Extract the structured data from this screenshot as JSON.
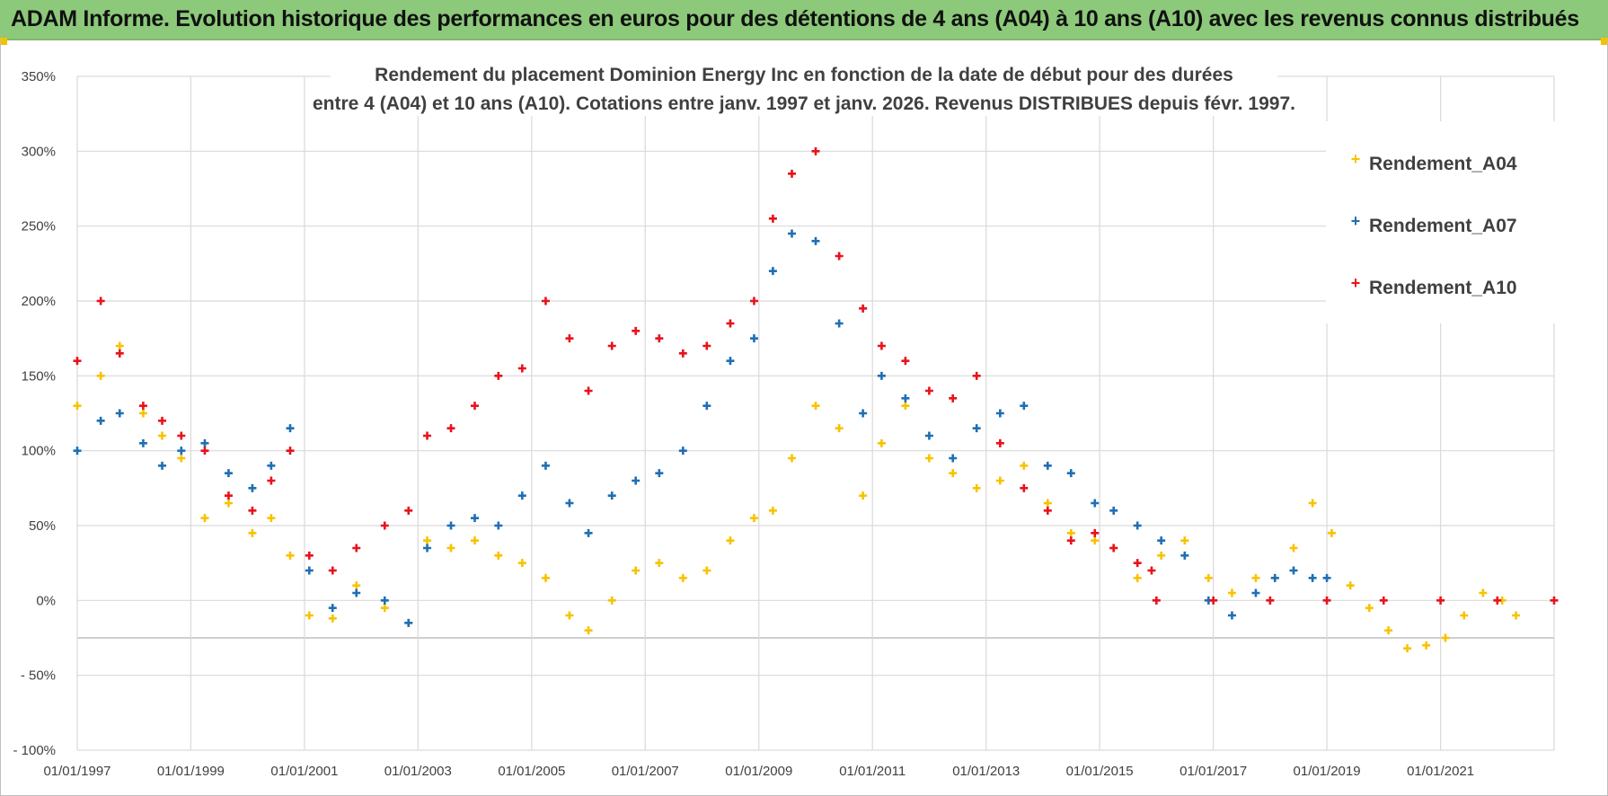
{
  "banner": {
    "text": "ADAM Informe. Evolution historique des performances en euros pour des détentions de 4 ans (A04) à 10 ans (A10) avec les revenus connus distribués"
  },
  "colors": {
    "banner_bg": "#8cc97a",
    "A04": "#f7c300",
    "A07": "#1f6fb4",
    "A10": "#e8121c",
    "grid": "#d9d9d9"
  },
  "chart_data": {
    "type": "scatter",
    "title_lines": [
      "Rendement du placement Dominion Energy Inc en fonction de la date de début pour des durées",
      "entre 4 (A04) et 10 ans (A10). Cotations entre janv. 1997 et janv. 2026. Revenus DISTRIBUES depuis févr. 1997."
    ],
    "x_axis": {
      "type": "date",
      "range": [
        "1997-01-01",
        "2023-01-01"
      ],
      "tick_labels": [
        "01/01/1997",
        "01/01/1999",
        "01/01/2001",
        "01/01/2003",
        "01/01/2005",
        "01/01/2007",
        "01/01/2009",
        "01/01/2011",
        "01/01/2013",
        "01/01/2015",
        "01/01/2017",
        "01/01/2019",
        "01/01/2021"
      ]
    },
    "y_axis": {
      "range": [
        -100,
        350
      ],
      "unit": "%",
      "tick_values": [
        -100,
        -50,
        0,
        50,
        100,
        150,
        200,
        250,
        300,
        350
      ],
      "tick_labels": [
        "- 100%",
        "- 50%",
        "0%",
        "50%",
        "100%",
        "150%",
        "200%",
        "250%",
        "300%",
        "350%"
      ]
    },
    "grid": true,
    "legend_position": "top-right",
    "marker": "+",
    "series": [
      {
        "name": "Rendement_A04",
        "color": "#f7c300",
        "x": [
          "1997-01-01",
          "1997-06-01",
          "1997-10-01",
          "1998-03-01",
          "1998-07-01",
          "1998-11-01",
          "1999-04-01",
          "1999-09-01",
          "2000-02-01",
          "2000-06-01",
          "2000-10-01",
          "2001-02-01",
          "2001-07-01",
          "2001-12-01",
          "2002-06-01",
          "2002-11-01",
          "2003-03-01",
          "2003-08-01",
          "2004-01-01",
          "2004-06-01",
          "2004-11-01",
          "2005-04-01",
          "2005-09-01",
          "2006-01-01",
          "2006-06-01",
          "2006-11-01",
          "2007-04-01",
          "2007-09-01",
          "2008-02-01",
          "2008-07-01",
          "2008-12-01",
          "2009-04-01",
          "2009-08-01",
          "2010-01-01",
          "2010-06-01",
          "2010-11-01",
          "2011-03-01",
          "2011-08-01",
          "2012-01-01",
          "2012-06-01",
          "2012-11-01",
          "2013-04-01",
          "2013-09-01",
          "2014-02-01",
          "2014-07-01",
          "2014-12-01",
          "2015-04-01",
          "2015-09-01",
          "2016-02-01",
          "2016-07-01",
          "2016-12-01",
          "2017-05-01",
          "2017-10-01",
          "2018-02-01",
          "2018-06-01",
          "2018-10-01",
          "2019-02-01",
          "2019-06-01",
          "2019-10-01",
          "2020-02-01",
          "2020-06-01",
          "2020-10-01",
          "2021-02-01",
          "2021-06-01",
          "2021-10-01",
          "2022-02-01",
          "2022-05-01"
        ],
        "y": [
          130,
          150,
          170,
          125,
          110,
          95,
          55,
          65,
          45,
          55,
          30,
          -10,
          -12,
          10,
          -5,
          -15,
          40,
          35,
          40,
          30,
          25,
          15,
          -10,
          -20,
          0,
          20,
          25,
          15,
          20,
          40,
          55,
          60,
          95,
          130,
          115,
          70,
          105,
          130,
          95,
          85,
          75,
          80,
          90,
          65,
          45,
          40,
          35,
          15,
          30,
          40,
          15,
          5,
          15,
          15,
          35,
          65,
          45,
          10,
          -5,
          -20,
          -32,
          -30,
          -25,
          -10,
          5,
          0,
          -10
        ]
      },
      {
        "name": "Rendement_A07",
        "color": "#1f6fb4",
        "x": [
          "1997-01-01",
          "1997-06-01",
          "1997-10-01",
          "1998-03-01",
          "1998-07-01",
          "1998-11-01",
          "1999-04-01",
          "1999-09-01",
          "2000-02-01",
          "2000-06-01",
          "2000-10-01",
          "2001-02-01",
          "2001-07-01",
          "2001-12-01",
          "2002-06-01",
          "2002-11-01",
          "2003-03-01",
          "2003-08-01",
          "2004-01-01",
          "2004-06-01",
          "2004-11-01",
          "2005-04-01",
          "2005-09-01",
          "2006-01-01",
          "2006-06-01",
          "2006-11-01",
          "2007-04-01",
          "2007-09-01",
          "2008-02-01",
          "2008-07-01",
          "2008-12-01",
          "2009-04-01",
          "2009-08-01",
          "2010-01-01",
          "2010-06-01",
          "2010-11-01",
          "2011-03-01",
          "2011-08-01",
          "2012-01-01",
          "2012-06-01",
          "2012-11-01",
          "2013-04-01",
          "2013-09-01",
          "2014-02-01",
          "2014-07-01",
          "2014-12-01",
          "2015-04-01",
          "2015-09-01",
          "2016-02-01",
          "2016-07-01",
          "2016-12-01",
          "2017-05-01",
          "2017-10-01",
          "2018-02-01",
          "2018-06-01",
          "2018-10-01",
          "2019-01-01"
        ],
        "y": [
          100,
          120,
          125,
          105,
          90,
          100,
          105,
          85,
          75,
          90,
          115,
          20,
          -5,
          5,
          0,
          -15,
          35,
          50,
          55,
          50,
          70,
          90,
          65,
          45,
          70,
          80,
          85,
          100,
          130,
          160,
          175,
          220,
          245,
          240,
          185,
          125,
          150,
          135,
          110,
          95,
          115,
          125,
          130,
          90,
          85,
          65,
          60,
          50,
          40,
          30,
          0,
          -10,
          5,
          15,
          20,
          15,
          15
        ]
      },
      {
        "name": "Rendement_A10",
        "color": "#e8121c",
        "x": [
          "1997-01-01",
          "1997-06-01",
          "1997-10-01",
          "1998-03-01",
          "1998-07-01",
          "1998-11-01",
          "1999-04-01",
          "1999-09-01",
          "2000-02-01",
          "2000-06-01",
          "2000-10-01",
          "2001-02-01",
          "2001-07-01",
          "2001-12-01",
          "2002-06-01",
          "2002-11-01",
          "2003-03-01",
          "2003-08-01",
          "2004-01-01",
          "2004-06-01",
          "2004-11-01",
          "2005-04-01",
          "2005-09-01",
          "2006-01-01",
          "2006-06-01",
          "2006-11-01",
          "2007-04-01",
          "2007-09-01",
          "2008-02-01",
          "2008-07-01",
          "2008-12-01",
          "2009-04-01",
          "2009-08-01",
          "2010-01-01",
          "2010-06-01",
          "2010-11-01",
          "2011-03-01",
          "2011-08-01",
          "2012-01-01",
          "2012-06-01",
          "2012-11-01",
          "2013-04-01",
          "2013-09-01",
          "2014-02-01",
          "2014-07-01",
          "2014-12-01",
          "2015-04-01",
          "2015-09-01",
          "2015-12-01",
          "2016-01-01",
          "2017-01-01",
          "2018-01-01",
          "2019-01-01",
          "2020-01-01",
          "2021-01-01",
          "2022-01-01",
          "2023-01-01"
        ],
        "y": [
          160,
          200,
          165,
          130,
          120,
          110,
          100,
          70,
          60,
          80,
          100,
          30,
          20,
          35,
          50,
          60,
          110,
          115,
          130,
          150,
          155,
          200,
          175,
          140,
          170,
          180,
          175,
          165,
          170,
          185,
          200,
          255,
          285,
          300,
          230,
          195,
          170,
          160,
          140,
          135,
          150,
          105,
          75,
          60,
          40,
          45,
          35,
          25,
          20,
          0,
          0,
          0,
          0,
          0,
          0,
          0,
          0
        ]
      }
    ]
  }
}
